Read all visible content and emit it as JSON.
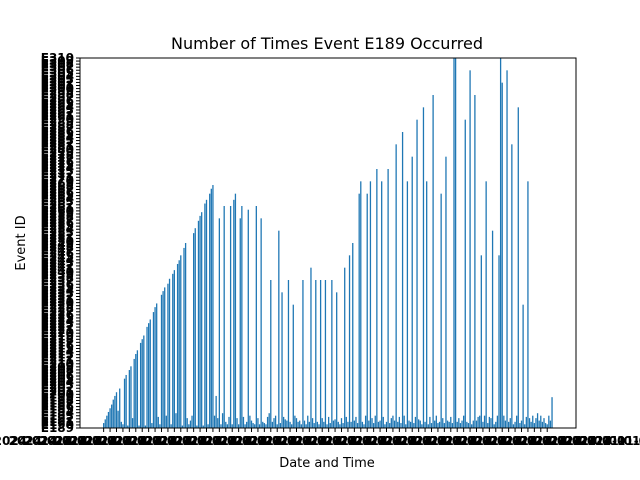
{
  "chart_data": {
    "type": "bar",
    "title": "Number of Times Event E189 Occurred",
    "xlabel": "Date and Time",
    "ylabel": "Event ID",
    "ylim": [
      0,
      300
    ],
    "grid": false,
    "legend": "none",
    "bar_color": "#1f77b4",
    "category_count": 300,
    "value_estimates_note_free": true,
    "values": [
      4,
      7,
      10,
      13,
      16,
      19,
      23,
      26,
      29,
      14,
      32,
      5,
      3,
      40,
      43,
      2,
      47,
      50,
      8,
      56,
      60,
      63,
      2,
      69,
      72,
      75,
      2,
      82,
      85,
      88,
      4,
      94,
      98,
      101,
      9,
      3,
      108,
      111,
      114,
      10,
      117,
      121,
      3,
      125,
      128,
      12,
      133,
      136,
      140,
      2,
      146,
      150,
      8,
      3,
      6,
      10,
      158,
      162,
      2,
      168,
      172,
      175,
      2,
      182,
      185,
      3,
      190,
      194,
      197,
      10,
      26,
      8,
      170,
      3,
      12,
      180,
      5,
      3,
      9,
      180,
      3,
      185,
      190,
      8,
      3,
      170,
      180,
      9,
      3,
      5,
      177,
      10,
      6,
      4,
      3,
      180,
      8,
      3,
      170,
      5,
      4,
      3,
      9,
      12,
      120,
      5,
      8,
      10,
      3,
      160,
      4,
      110,
      9,
      7,
      6,
      120,
      5,
      3,
      100,
      10,
      8,
      5,
      6,
      3,
      120,
      6,
      3,
      10,
      5,
      130,
      8,
      4,
      120,
      5,
      3,
      120,
      8,
      5,
      120,
      3,
      9,
      4,
      120,
      6,
      7,
      110,
      5,
      3,
      8,
      4,
      130,
      9,
      5,
      140,
      5,
      150,
      6,
      9,
      4,
      190,
      200,
      5,
      3,
      10,
      190,
      6,
      200,
      8,
      4,
      10,
      210,
      5,
      6,
      200,
      9,
      3,
      5,
      210,
      4,
      8,
      10,
      6,
      230,
      5,
      9,
      4,
      240,
      10,
      3,
      200,
      6,
      5,
      220,
      4,
      9,
      250,
      7,
      6,
      3,
      260,
      5,
      200,
      3,
      9,
      4,
      270,
      6,
      10,
      4,
      5,
      190,
      8,
      4,
      220,
      6,
      5,
      9,
      4,
      300,
      300,
      5,
      8,
      4,
      6,
      10,
      250,
      5,
      4,
      290,
      3,
      6,
      270,
      6,
      9,
      10,
      140,
      5,
      10,
      200,
      4,
      9,
      8,
      160,
      3,
      5,
      10,
      140,
      300,
      280,
      10,
      6,
      290,
      5,
      8,
      230,
      3,
      5,
      10,
      260,
      4,
      6,
      100,
      3,
      9,
      200,
      8,
      5,
      10,
      4,
      8,
      12,
      6,
      10,
      5,
      8,
      4,
      3,
      10,
      6,
      25
    ],
    "y_tick_labels": [
      "E189",
      "E190",
      "E191",
      "E192",
      "E193",
      "E194",
      "E195",
      "E196",
      "E197",
      "E198",
      "E199",
      "E200",
      "E201",
      "E202",
      "E203",
      "E204",
      "E205",
      "E206",
      "E207",
      "E208",
      "E209",
      "E210",
      "E211",
      "E212",
      "E213",
      "E214",
      "E215",
      "E216",
      "E217",
      "E218",
      "E219",
      "E220",
      "E221",
      "E222",
      "E223",
      "E224",
      "E225",
      "E226",
      "E227",
      "E228",
      "E229",
      "E230",
      "E231",
      "E232",
      "E233",
      "E234",
      "E235",
      "E236",
      "E237",
      "E238",
      "E239",
      "E240",
      "E241",
      "E242",
      "E243",
      "E244",
      "E245",
      "E246",
      "E247",
      "E248",
      "E249",
      "E250",
      "E251",
      "E252",
      "E253",
      "E254",
      "E255",
      "E256",
      "E257",
      "E258",
      "E259",
      "E260",
      "E261",
      "E262",
      "E263",
      "E264",
      "E265",
      "E266",
      "E267",
      "E268",
      "E269",
      "E270",
      "E271",
      "E272",
      "E273",
      "E274",
      "E275",
      "E276",
      "E277",
      "E278",
      "E279",
      "E280",
      "E281",
      "E282",
      "E283",
      "E284",
      "E285",
      "E286",
      "E287",
      "E288",
      "E289",
      "E290",
      "E291",
      "E292",
      "E293",
      "E294",
      "E295",
      "E296",
      "E297",
      "E298",
      "E299",
      "E300",
      "E301",
      "E302",
      "E303",
      "E304",
      "E305",
      "E306",
      "E307",
      "E308",
      "E309",
      "E310"
    ],
    "x_tick_label_sample": "2024-01-01"
  }
}
